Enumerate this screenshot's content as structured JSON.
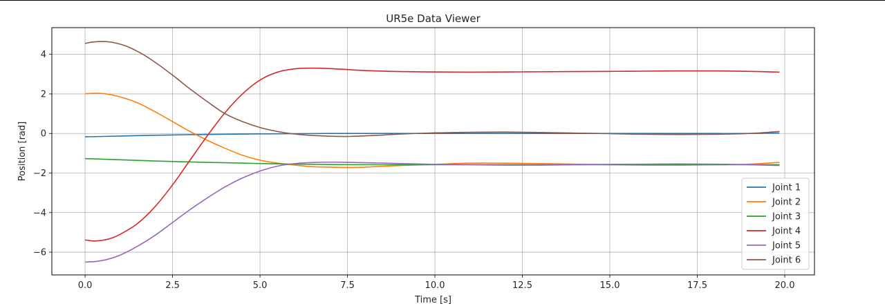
{
  "chart_data": {
    "type": "line",
    "title": "UR5e Data Viewer",
    "xlabel": "Time [s]",
    "ylabel": "Position [rad]",
    "xlim": [
      -0.95,
      20.85
    ],
    "ylim": [
      -7.15,
      5.35
    ],
    "xticks": [
      0,
      2.5,
      5,
      7.5,
      10,
      12.5,
      15,
      17.5,
      20
    ],
    "xtick_labels": [
      "0.0",
      "2.5",
      "5.0",
      "7.5",
      "10.0",
      "12.5",
      "15.0",
      "17.5",
      "20.0"
    ],
    "yticks": [
      -6,
      -4,
      -2,
      0,
      2,
      4
    ],
    "ytick_labels": [
      "−6",
      "−4",
      "−2",
      "0",
      "2",
      "4"
    ],
    "grid": true,
    "legend_position": "lower-right",
    "series": [
      {
        "name": "Joint 1",
        "color": "#1f77b4",
        "x": [
          0,
          1,
          2,
          3,
          4,
          5,
          6,
          7,
          8,
          9,
          10,
          11,
          12,
          13,
          14,
          15,
          16,
          17,
          18,
          19,
          19.85
        ],
        "y": [
          -0.17,
          -0.13,
          -0.09,
          -0.06,
          -0.04,
          -0.02,
          -0.01,
          0,
          0,
          0,
          0,
          0,
          0,
          0,
          0,
          0,
          0,
          0,
          0,
          0,
          0.02
        ]
      },
      {
        "name": "Joint 2",
        "color": "#ff7f0e",
        "x": [
          0,
          0.3,
          0.6,
          1,
          1.5,
          2,
          2.5,
          3,
          3.5,
          4,
          4.5,
          5,
          5.5,
          6,
          6.5,
          7,
          7.5,
          8,
          9,
          10,
          11,
          12,
          13,
          14,
          15,
          16,
          17,
          18,
          19,
          19.85
        ],
        "y": [
          2.01,
          2.03,
          2.0,
          1.85,
          1.55,
          1.1,
          0.6,
          0.1,
          -0.35,
          -0.75,
          -1.1,
          -1.35,
          -1.5,
          -1.6,
          -1.68,
          -1.7,
          -1.72,
          -1.7,
          -1.62,
          -1.56,
          -1.5,
          -1.5,
          -1.52,
          -1.55,
          -1.58,
          -1.6,
          -1.6,
          -1.58,
          -1.55,
          -1.46
        ]
      },
      {
        "name": "Joint 3",
        "color": "#2ca02c",
        "x": [
          0,
          1,
          2,
          3,
          4,
          5,
          6,
          7,
          8,
          9,
          10,
          11,
          12,
          13,
          14,
          15,
          16,
          17,
          18,
          19,
          19.85
        ],
        "y": [
          -1.27,
          -1.33,
          -1.39,
          -1.44,
          -1.48,
          -1.52,
          -1.55,
          -1.57,
          -1.58,
          -1.58,
          -1.58,
          -1.58,
          -1.58,
          -1.58,
          -1.58,
          -1.58,
          -1.58,
          -1.58,
          -1.58,
          -1.58,
          -1.58
        ]
      },
      {
        "name": "Joint 4",
        "color": "#d62728",
        "x": [
          0,
          0.2,
          0.4,
          0.7,
          1,
          1.5,
          2,
          2.5,
          3,
          3.5,
          4,
          4.5,
          5,
          5.5,
          6,
          6.5,
          7,
          7.5,
          8,
          9,
          10,
          11,
          12,
          13,
          14,
          15,
          16,
          17,
          18,
          19,
          19.85
        ],
        "y": [
          -5.38,
          -5.43,
          -5.42,
          -5.32,
          -5.1,
          -4.55,
          -3.7,
          -2.6,
          -1.35,
          -0.1,
          1.05,
          2.0,
          2.7,
          3.1,
          3.27,
          3.3,
          3.28,
          3.23,
          3.18,
          3.13,
          3.11,
          3.1,
          3.11,
          3.12,
          3.13,
          3.14,
          3.15,
          3.16,
          3.16,
          3.14,
          3.1
        ]
      },
      {
        "name": "Joint 5",
        "color": "#9467bd",
        "x": [
          0,
          0.3,
          0.6,
          1,
          1.5,
          2,
          2.5,
          3,
          3.5,
          4,
          4.5,
          5,
          5.5,
          6,
          6.5,
          7,
          7.5,
          8,
          9,
          10,
          11,
          12,
          13,
          14,
          15,
          16,
          17,
          18,
          19,
          19.85
        ],
        "y": [
          -6.5,
          -6.47,
          -6.38,
          -6.15,
          -5.7,
          -5.15,
          -4.5,
          -3.85,
          -3.25,
          -2.7,
          -2.25,
          -1.9,
          -1.65,
          -1.52,
          -1.47,
          -1.45,
          -1.46,
          -1.48,
          -1.52,
          -1.56,
          -1.58,
          -1.6,
          -1.6,
          -1.58,
          -1.56,
          -1.55,
          -1.54,
          -1.55,
          -1.58,
          -1.62
        ]
      },
      {
        "name": "Joint 6",
        "color": "#8c564b",
        "x": [
          0,
          0.2,
          0.5,
          0.8,
          1.2,
          1.6,
          2,
          2.5,
          3,
          3.5,
          4,
          4.5,
          5,
          5.5,
          6,
          6.5,
          7,
          7.5,
          8,
          8.5,
          9,
          10,
          11,
          12,
          13,
          14,
          15,
          16,
          17,
          18,
          19,
          19.85
        ],
        "y": [
          4.55,
          4.62,
          4.65,
          4.6,
          4.4,
          4.05,
          3.6,
          2.95,
          2.25,
          1.6,
          1.0,
          0.6,
          0.3,
          0.1,
          -0.03,
          -0.1,
          -0.14,
          -0.15,
          -0.12,
          -0.08,
          -0.03,
          0.03,
          0.06,
          0.07,
          0.05,
          0.02,
          -0.01,
          -0.04,
          -0.05,
          -0.04,
          0.0,
          0.1
        ]
      }
    ]
  }
}
